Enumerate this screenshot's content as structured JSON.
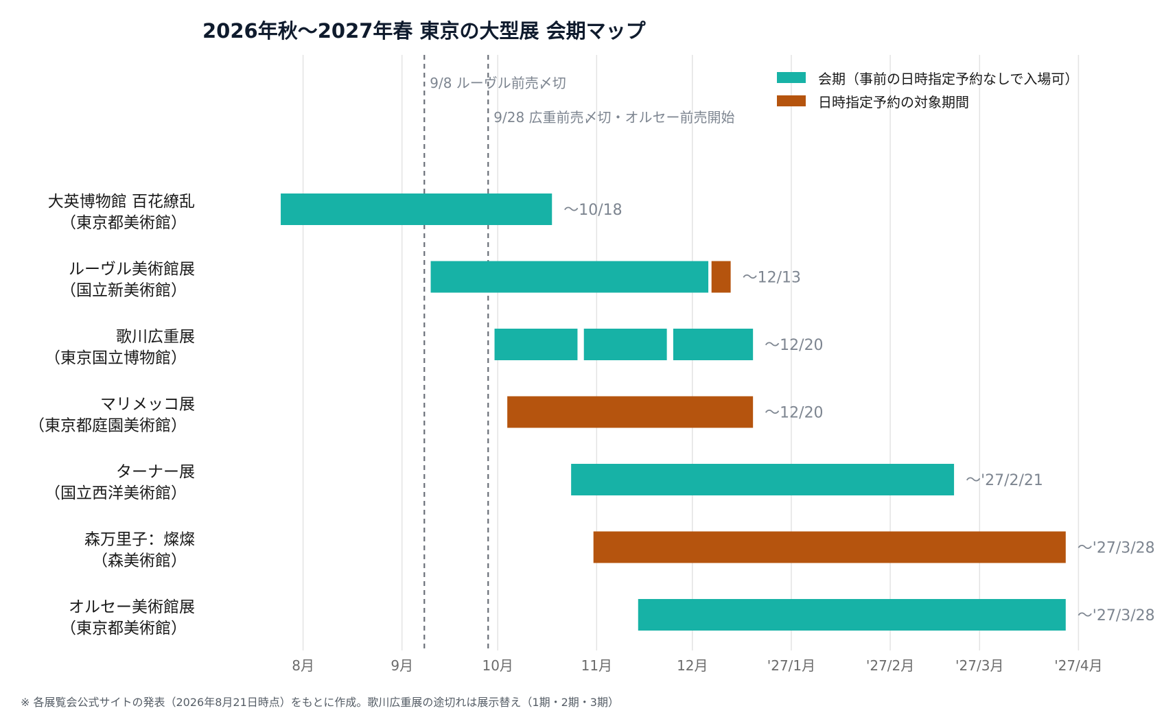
{
  "chart_data": {
    "type": "gantt",
    "title": "2026年秋〜2027年春 東京の大型展 会期マップ",
    "footnote": "※ 各展覧会公式サイトの発表（2026年8月21日時点）をもとに作成。歌川広重展の途切れは展示替え（1期・2期・3期）",
    "x_axis": {
      "start": "2026-07-08",
      "end": "2027-04-05",
      "ticks": [
        {
          "date": "2026-08-01",
          "label": "8月"
        },
        {
          "date": "2026-09-01",
          "label": "9月"
        },
        {
          "date": "2026-10-01",
          "label": "10月"
        },
        {
          "date": "2026-11-01",
          "label": "11月"
        },
        {
          "date": "2026-12-01",
          "label": "12月"
        },
        {
          "date": "2027-01-01",
          "label": "'27/1月"
        },
        {
          "date": "2027-02-01",
          "label": "'27/2月"
        },
        {
          "date": "2027-03-01",
          "label": "'27/3月"
        },
        {
          "date": "2027-04-01",
          "label": "'27/4月"
        }
      ],
      "grid": true
    },
    "legend": {
      "placement": "top-right",
      "items": [
        {
          "key": "open",
          "label": "会期（事前の日時指定予約なしで入場可）",
          "color": "#17b2a6"
        },
        {
          "key": "reserved",
          "label": "日時指定予約の対象期間",
          "color": "#b5540e"
        }
      ]
    },
    "reference_lines": [
      {
        "date": "2026-09-08",
        "label": "9/8 ルーヴル前売〆切"
      },
      {
        "date": "2026-09-28",
        "label": "9/28 広重前売〆切・オルセー前売開始"
      }
    ],
    "rows": [
      {
        "name": "大英博物館 百花繚乱",
        "venue": "（東京都美術館）",
        "end_label": "〜10/18",
        "segments": [
          {
            "start": "2026-07-25",
            "end": "2026-10-18",
            "kind": "open"
          }
        ]
      },
      {
        "name": "ルーヴル美術館展",
        "venue": "（国立新美術館）",
        "end_label": "〜12/13",
        "segments": [
          {
            "start": "2026-09-10",
            "end": "2026-12-06",
            "kind": "open"
          },
          {
            "start": "2026-12-07",
            "end": "2026-12-13",
            "kind": "reserved"
          }
        ]
      },
      {
        "name": "歌川広重展",
        "venue": "（東京国立博物館）",
        "end_label": "〜12/20",
        "segments": [
          {
            "start": "2026-09-30",
            "end": "2026-10-26",
            "kind": "open"
          },
          {
            "start": "2026-10-28",
            "end": "2026-11-23",
            "kind": "open"
          },
          {
            "start": "2026-11-25",
            "end": "2026-12-20",
            "kind": "open"
          }
        ]
      },
      {
        "name": "マリメッコ展",
        "venue": "（東京都庭園美術館）",
        "end_label": "〜12/20",
        "segments": [
          {
            "start": "2026-10-04",
            "end": "2026-12-20",
            "kind": "reserved"
          }
        ]
      },
      {
        "name": "ターナー展",
        "venue": "（国立西洋美術館）",
        "end_label": "〜'27/2/21",
        "segments": [
          {
            "start": "2026-10-24",
            "end": "2027-02-21",
            "kind": "open"
          }
        ]
      },
      {
        "name": "森万里子：燦燦",
        "venue": "（森美術館）",
        "end_label": "〜'27/3/28",
        "segments": [
          {
            "start": "2026-10-31",
            "end": "2027-03-28",
            "kind": "reserved"
          }
        ]
      },
      {
        "name": "オルセー美術館展",
        "venue": "（東京都美術館）",
        "end_label": "〜'27/3/28",
        "segments": [
          {
            "start": "2026-11-14",
            "end": "2027-03-28",
            "kind": "open"
          }
        ]
      }
    ]
  }
}
